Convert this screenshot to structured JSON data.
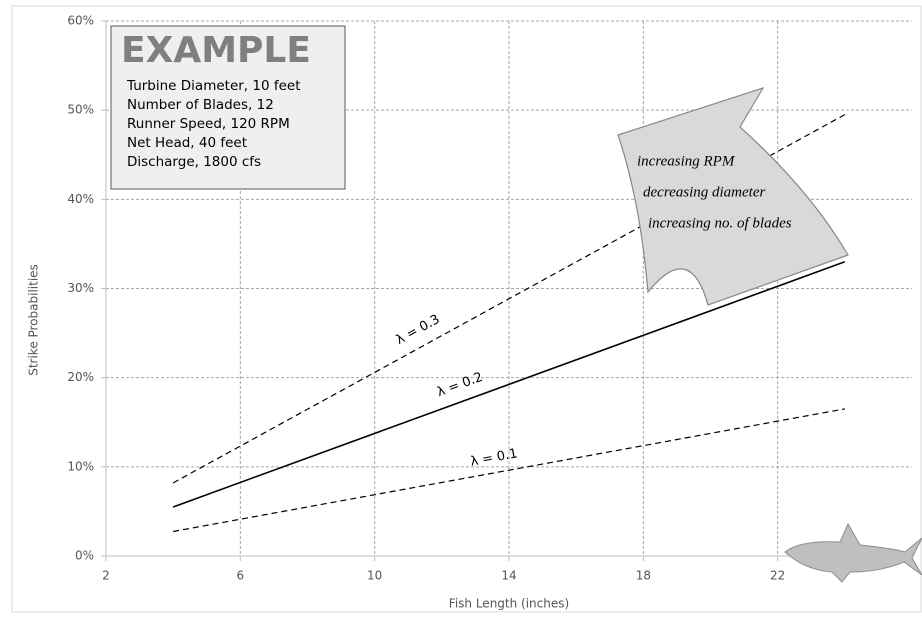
{
  "chart_data": {
    "type": "line",
    "y_label": "Strike Probabilities",
    "x_label": "Fish Length (inches)",
    "x": [
      4,
      24
    ],
    "series": [
      {
        "name": "λ = 0.3",
        "color": "#000000",
        "dashed": true,
        "values": [
          8.2,
          49.5
        ]
      },
      {
        "name": "λ = 0.2",
        "color": "#000000",
        "dashed": false,
        "values": [
          5.5,
          33
        ]
      },
      {
        "name": "λ = 0.1",
        "color": "#000000",
        "dashed": true,
        "values": [
          2.75,
          16.5
        ]
      }
    ],
    "xlim": [
      2,
      26
    ],
    "xticks": [
      2,
      6,
      10,
      14,
      18,
      22
    ],
    "ylim": [
      0,
      60
    ],
    "yticks": [
      {
        "value": 0,
        "label": "0%"
      },
      {
        "value": 10,
        "label": "10%"
      },
      {
        "value": 20,
        "label": "20%"
      },
      {
        "value": 30,
        "label": "30%"
      },
      {
        "value": 40,
        "label": "40%"
      },
      {
        "value": 50,
        "label": "50%"
      },
      {
        "value": 60,
        "label": "60%"
      }
    ],
    "grid": true,
    "example_box": {
      "title": "EXAMPLE",
      "lines": [
        "Turbine Diameter, 10 feet",
        "Number of Blades, 12",
        "Runner Speed, 120 RPM",
        "Net Head, 40 feet",
        "Discharge, 1800 cfs"
      ]
    },
    "arrow_text": [
      "increasing RPM",
      "decreasing diameter",
      "increasing no. of blades"
    ]
  }
}
